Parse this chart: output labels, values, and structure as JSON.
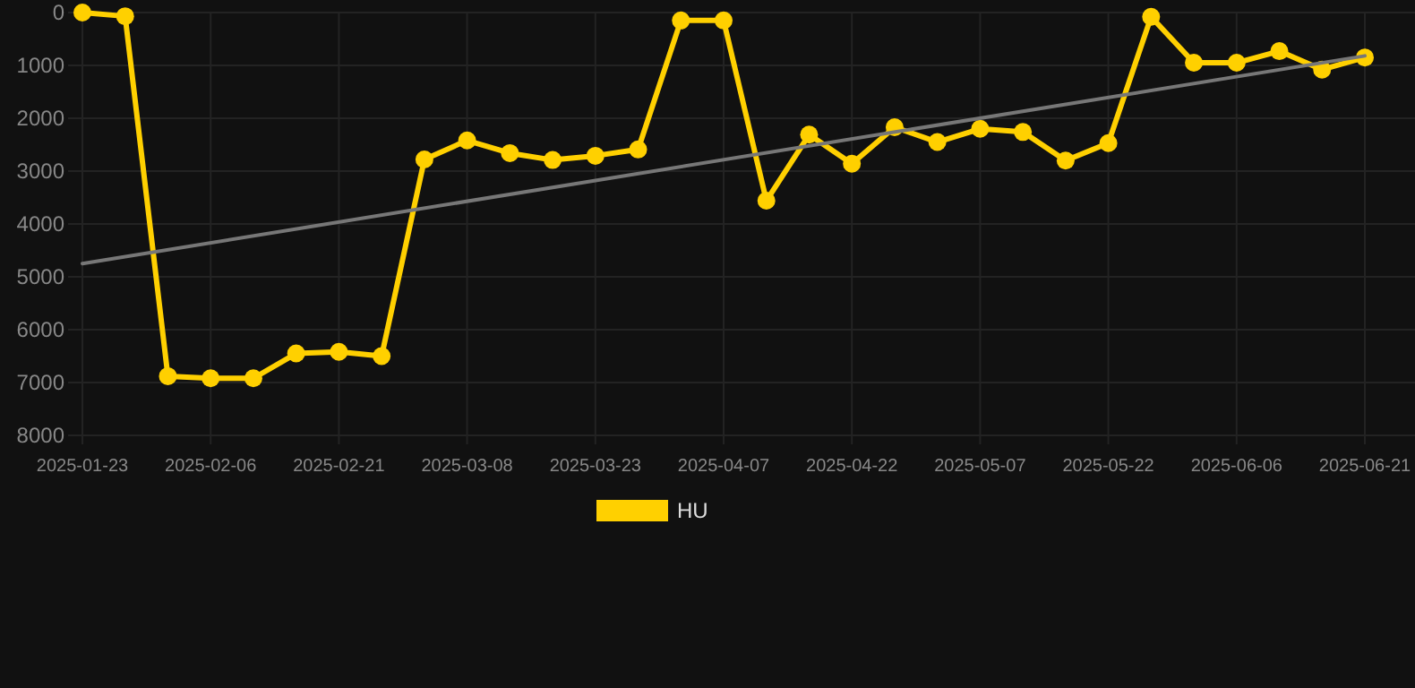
{
  "chart_data": {
    "type": "line",
    "categories": [
      "2025-01-23",
      null,
      null,
      "2025-02-06",
      null,
      null,
      "2025-02-21",
      null,
      null,
      "2025-03-08",
      null,
      null,
      "2025-03-23",
      null,
      null,
      "2025-04-07",
      null,
      null,
      "2025-04-22",
      null,
      null,
      "2025-05-07",
      null,
      null,
      "2025-05-22",
      null,
      null,
      "2025-06-06",
      null,
      null,
      "2025-06-21"
    ],
    "ylim": [
      8000,
      0
    ],
    "yticks": [
      0,
      1000,
      2000,
      3000,
      4000,
      5000,
      6000,
      7000,
      8000
    ],
    "grid": true,
    "legend": "bottom",
    "marker": "circle",
    "line_style": "solid",
    "series": [
      {
        "name": "HU",
        "color": "#ffd000",
        "values": [
          0,
          70,
          6880,
          6920,
          6920,
          6450,
          6420,
          6500,
          2780,
          2420,
          2660,
          2790,
          2710,
          2590,
          150,
          150,
          3560,
          2310,
          2860,
          2170,
          2450,
          2200,
          2260,
          2800,
          2470,
          80,
          950,
          950,
          730,
          1080,
          850
        ]
      },
      {
        "type": "line",
        "marker": "none",
        "color": "#777777",
        "values": [
          4750,
          null,
          null,
          null,
          null,
          null,
          null,
          null,
          null,
          null,
          null,
          null,
          null,
          null,
          null,
          null,
          null,
          null,
          null,
          null,
          null,
          null,
          null,
          null,
          null,
          null,
          null,
          null,
          null,
          null,
          820
        ]
      }
    ]
  }
}
